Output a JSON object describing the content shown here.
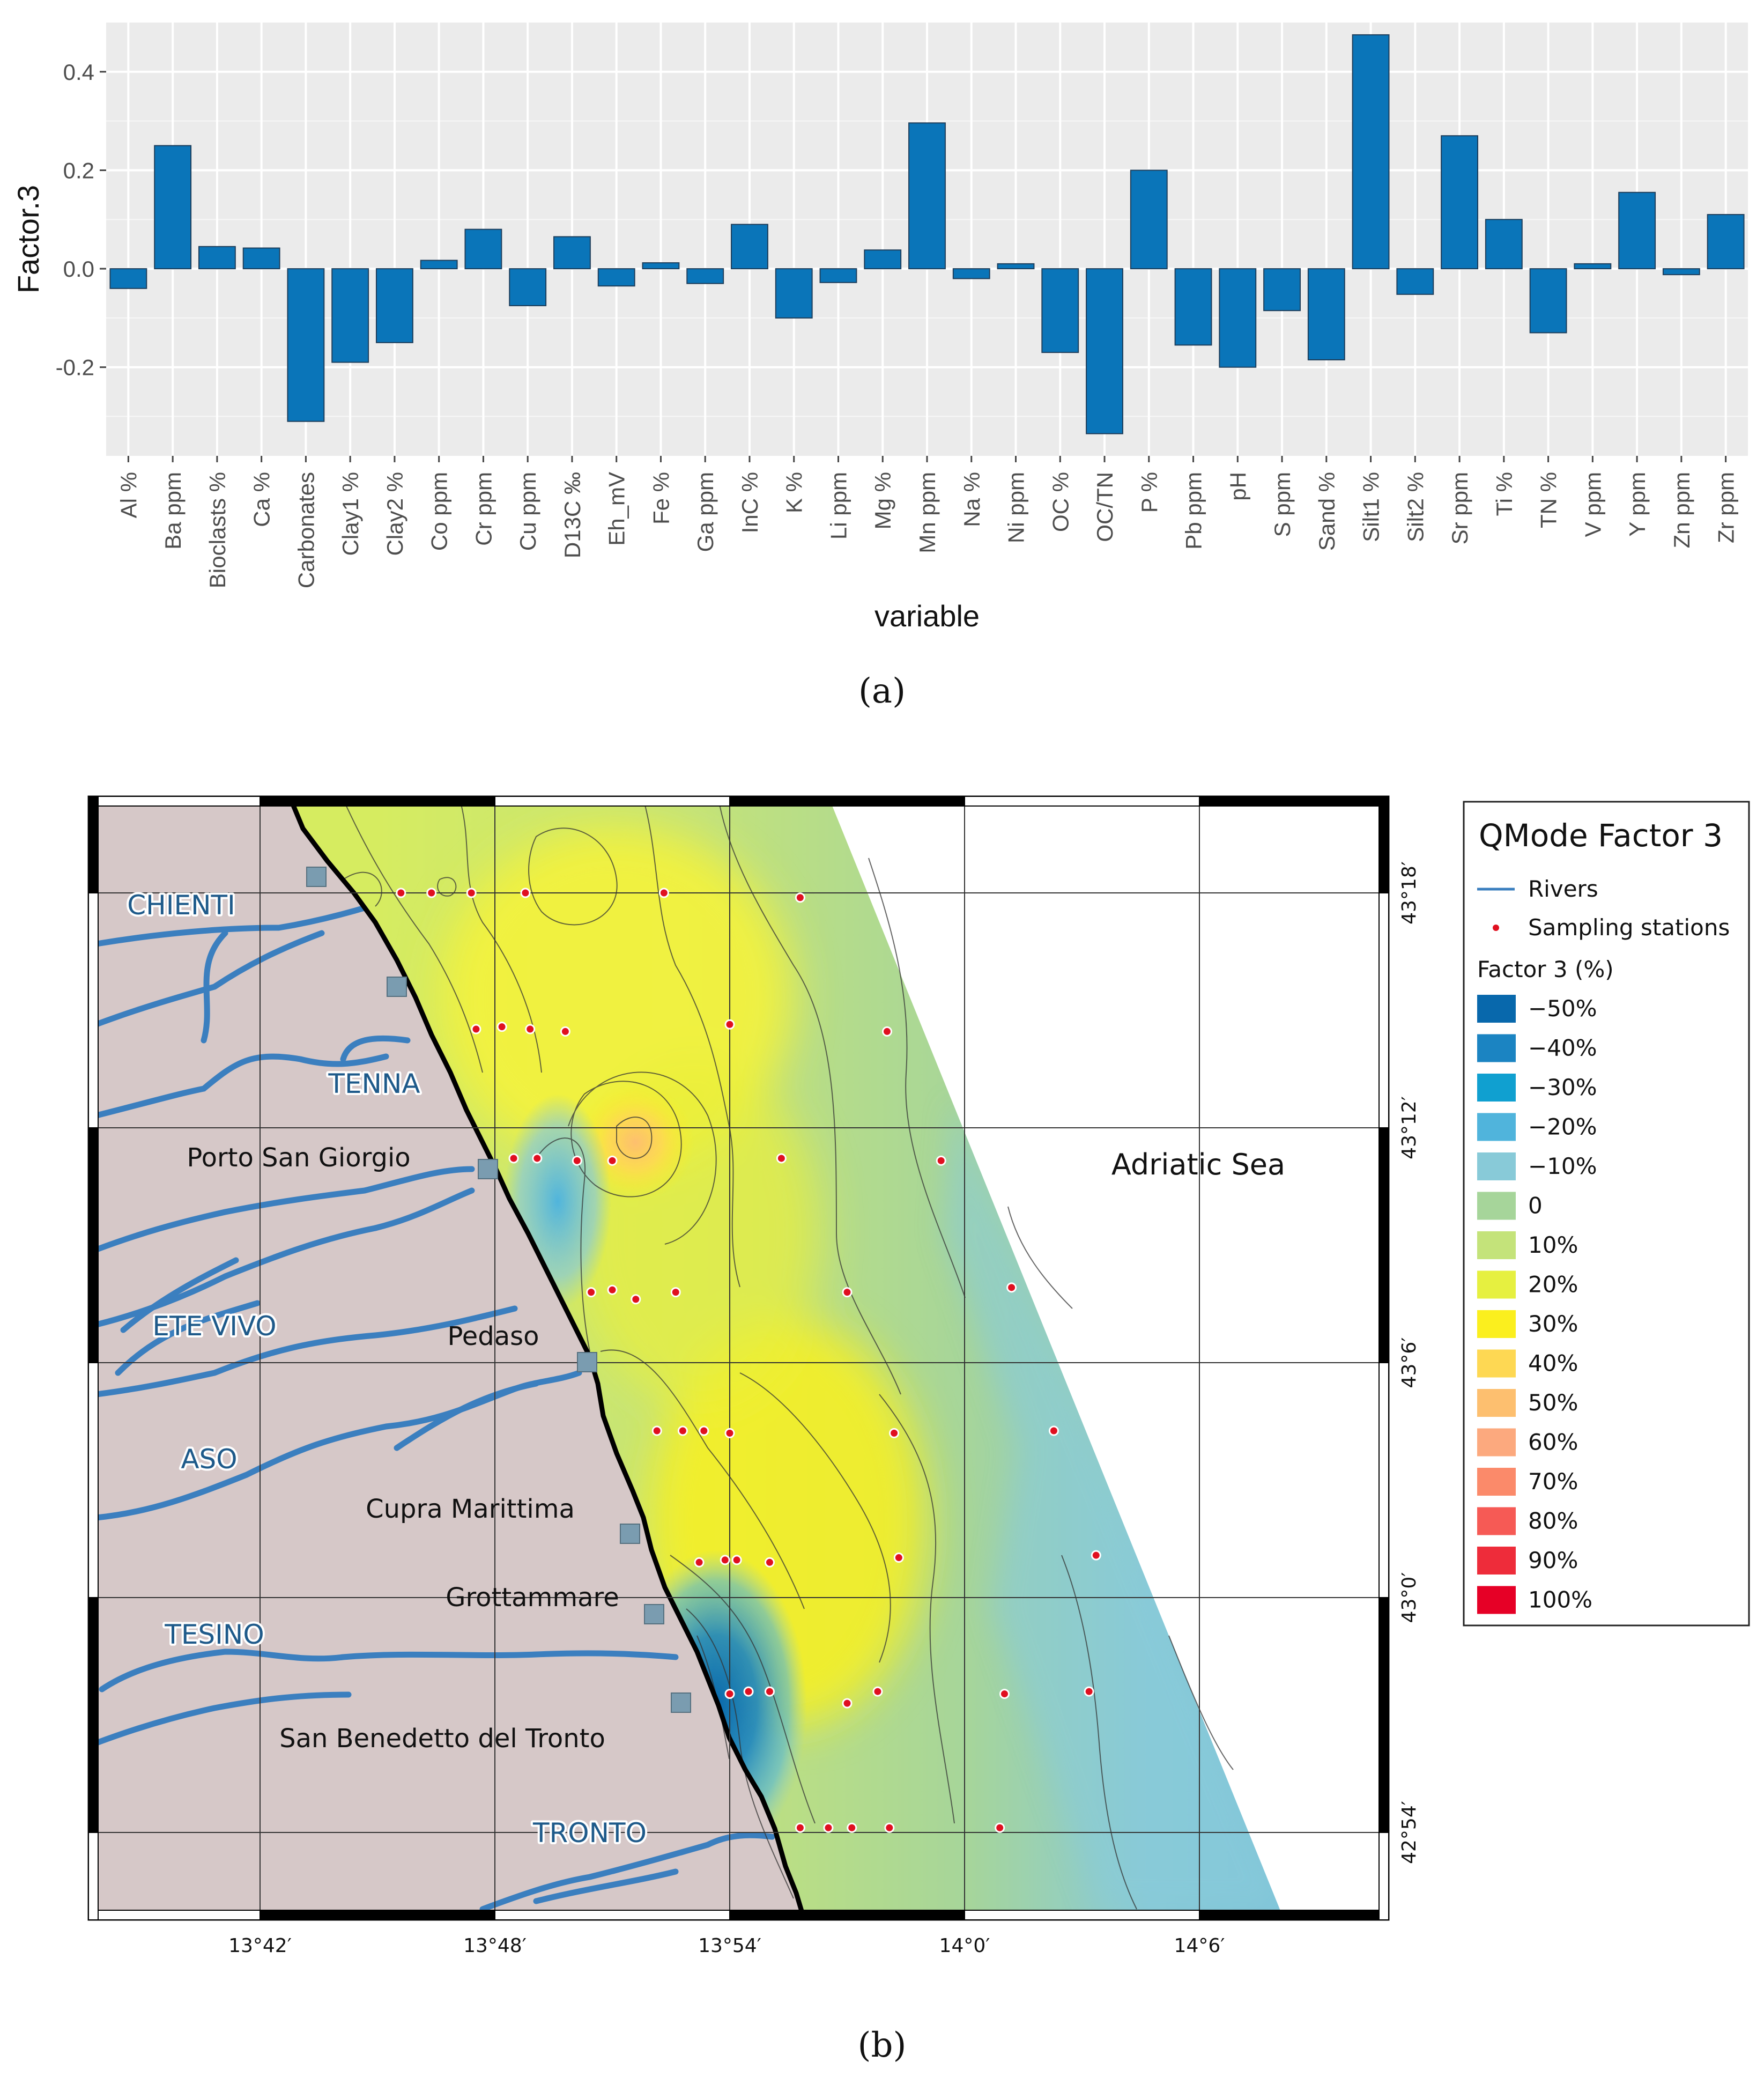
{
  "chart_data": [
    {
      "type": "bar",
      "xlabel": "variable",
      "ylabel": "Factor.3",
      "ylim": [
        -0.38,
        0.5
      ],
      "yticks": [
        -0.2,
        0.0,
        0.2,
        0.4
      ],
      "ytick_labels": [
        "-0.2",
        "0.0",
        "0.2",
        "0.4"
      ],
      "grid": true,
      "bar_color": "#0a75b9",
      "panel_background": "#ebebeb",
      "categories": [
        "Al %",
        "Ba ppm",
        "Bioclasts %",
        "Ca %",
        "Carbonates",
        "Clay1 %",
        "Clay2 %",
        "Co ppm",
        "Cr ppm",
        "Cu ppm",
        "D13C ‰",
        "Eh_mV",
        "Fe %",
        "Ga ppm",
        "InC %",
        "K %",
        "Li ppm",
        "Mg %",
        "Mn ppm",
        "Na %",
        "Ni ppm",
        "OC %",
        "OC/TN",
        "P %",
        "Pb ppm",
        "pH",
        "S ppm",
        "Sand %",
        "Silt1 %",
        "Silt2 %",
        "Sr ppm",
        "Ti %",
        "TN %",
        "V ppm",
        "Y ppm",
        "Zn ppm",
        "Zr ppm"
      ],
      "values": [
        -0.04,
        0.25,
        0.045,
        0.042,
        -0.31,
        -0.19,
        -0.15,
        0.017,
        0.08,
        -0.075,
        0.065,
        -0.035,
        0.012,
        -0.03,
        0.09,
        -0.1,
        -0.028,
        0.038,
        0.296,
        -0.02,
        0.01,
        -0.17,
        -0.335,
        0.2,
        -0.155,
        -0.2,
        -0.085,
        -0.185,
        0.475,
        -0.052,
        0.27,
        0.1,
        -0.13,
        0.01,
        0.155,
        -0.012,
        0.11
      ]
    },
    {
      "type": "heatmap",
      "x_ticks": [
        "13°42′",
        "13°48′",
        "13°54′",
        "14°0′",
        "14°6′"
      ],
      "y_ticks": [
        "43°18′",
        "43°12′",
        "43°6′",
        "43°0′",
        "42°54′"
      ],
      "sea_label": "Adriatic Sea",
      "rivers": [
        "CHIENTI",
        "TENNA",
        "ETE VIVO",
        "ASO",
        "TESINO",
        "TRONTO"
      ],
      "towns": [
        "Porto San Giorgio",
        "Pedaso",
        "Cupra Marittima",
        "Grottammare",
        "San Benedetto del Tronto"
      ],
      "legend": {
        "title": "QMode Factor 3",
        "rivers_label": "Rivers",
        "stations_label": "Sampling stations",
        "scale_title": "Factor 3 (%)",
        "classes": [
          {
            "label": "−50%",
            "color": "#0868ac"
          },
          {
            "label": "−40%",
            "color": "#1b84c2"
          },
          {
            "label": "−30%",
            "color": "#10a0d0"
          },
          {
            "label": "−20%",
            "color": "#50b4dc"
          },
          {
            "label": "−10%",
            "color": "#88cad8"
          },
          {
            "label": "0",
            "color": "#a6d59a"
          },
          {
            "label": "10%",
            "color": "#c4e37a"
          },
          {
            "label": "20%",
            "color": "#e6f040"
          },
          {
            "label": "30%",
            "color": "#fbef1e"
          },
          {
            "label": "40%",
            "color": "#fed853"
          },
          {
            "label": "50%",
            "color": "#fdbf6f"
          },
          {
            "label": "60%",
            "color": "#fca97e"
          },
          {
            "label": "70%",
            "color": "#fb8a6a"
          },
          {
            "label": "80%",
            "color": "#f65a55"
          },
          {
            "label": "90%",
            "color": "#ee2c3a"
          },
          {
            "label": "100%",
            "color": "#e60026"
          }
        ]
      },
      "stations": [
        {
          "lon": 13.76,
          "lat": 43.3
        },
        {
          "lon": 13.773,
          "lat": 43.3
        },
        {
          "lon": 13.79,
          "lat": 43.3
        },
        {
          "lon": 13.813,
          "lat": 43.3
        },
        {
          "lon": 13.872,
          "lat": 43.3
        },
        {
          "lon": 13.93,
          "lat": 43.298
        },
        {
          "lon": 13.792,
          "lat": 43.242
        },
        {
          "lon": 13.803,
          "lat": 43.243
        },
        {
          "lon": 13.815,
          "lat": 43.242
        },
        {
          "lon": 13.83,
          "lat": 43.241
        },
        {
          "lon": 13.9,
          "lat": 43.244
        },
        {
          "lon": 13.967,
          "lat": 43.241
        },
        {
          "lon": 13.808,
          "lat": 43.187
        },
        {
          "lon": 13.818,
          "lat": 43.187
        },
        {
          "lon": 13.835,
          "lat": 43.186
        },
        {
          "lon": 13.85,
          "lat": 43.186
        },
        {
          "lon": 13.922,
          "lat": 43.187
        },
        {
          "lon": 13.99,
          "lat": 43.186
        },
        {
          "lon": 13.841,
          "lat": 43.13
        },
        {
          "lon": 13.85,
          "lat": 43.131
        },
        {
          "lon": 13.86,
          "lat": 43.127
        },
        {
          "lon": 13.877,
          "lat": 43.13
        },
        {
          "lon": 13.95,
          "lat": 43.13
        },
        {
          "lon": 14.02,
          "lat": 43.132
        },
        {
          "lon": 13.869,
          "lat": 43.071
        },
        {
          "lon": 13.88,
          "lat": 43.071
        },
        {
          "lon": 13.889,
          "lat": 43.071
        },
        {
          "lon": 13.9,
          "lat": 43.07
        },
        {
          "lon": 13.97,
          "lat": 43.07
        },
        {
          "lon": 14.038,
          "lat": 43.071
        },
        {
          "lon": 13.887,
          "lat": 43.015
        },
        {
          "lon": 13.898,
          "lat": 43.016
        },
        {
          "lon": 13.903,
          "lat": 43.016
        },
        {
          "lon": 13.917,
          "lat": 43.015
        },
        {
          "lon": 13.972,
          "lat": 43.017
        },
        {
          "lon": 14.056,
          "lat": 43.018
        },
        {
          "lon": 13.9,
          "lat": 42.959
        },
        {
          "lon": 13.908,
          "lat": 42.96
        },
        {
          "lon": 13.917,
          "lat": 42.96
        },
        {
          "lon": 13.95,
          "lat": 42.955
        },
        {
          "lon": 13.963,
          "lat": 42.96
        },
        {
          "lon": 14.017,
          "lat": 42.959
        },
        {
          "lon": 14.053,
          "lat": 42.96
        },
        {
          "lon": 13.93,
          "lat": 42.902
        },
        {
          "lon": 13.942,
          "lat": 42.902
        },
        {
          "lon": 13.952,
          "lat": 42.902
        },
        {
          "lon": 13.968,
          "lat": 42.902
        },
        {
          "lon": 14.015,
          "lat": 42.902
        }
      ]
    }
  ],
  "captions": {
    "a": "(a)",
    "b": "(b)"
  }
}
